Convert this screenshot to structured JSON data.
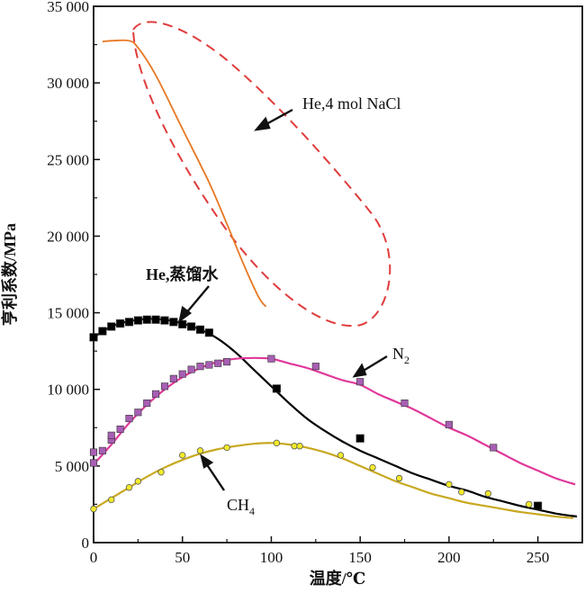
{
  "chart_data": {
    "type": "line",
    "xlabel": "温度/℃",
    "ylabel": "亨利系数/MPa",
    "xlim": [
      0,
      275
    ],
    "ylim": [
      0,
      35000
    ],
    "x_ticks": [
      0,
      50,
      100,
      150,
      200,
      250
    ],
    "x_tick_labels": [
      "0",
      "50",
      "100",
      "150",
      "200",
      "250"
    ],
    "y_ticks": [
      0,
      5000,
      10000,
      15000,
      20000,
      25000,
      30000,
      35000
    ],
    "y_tick_labels": [
      "0",
      "5 000",
      "10 000",
      "15 000",
      "20 000",
      "25 000",
      "30 000",
      "35 000"
    ],
    "grid": false,
    "series": [
      {
        "name": "He,4 mol NaCl",
        "color": "#e87722",
        "marker": "none",
        "curve": [
          [
            5,
            32700
          ],
          [
            10,
            32750
          ],
          [
            20,
            32750
          ],
          [
            25,
            32300
          ],
          [
            35,
            30500
          ],
          [
            50,
            27000
          ],
          [
            65,
            23500
          ],
          [
            75,
            20800
          ],
          [
            85,
            18000
          ],
          [
            93,
            16000
          ],
          [
            97,
            15400
          ]
        ]
      },
      {
        "name": "He,蒸馏水",
        "color": "#000000",
        "marker": "square",
        "marker_fill": "#000000",
        "points": [
          [
            0,
            13400
          ],
          [
            5,
            13800
          ],
          [
            10,
            14100
          ],
          [
            15,
            14300
          ],
          [
            20,
            14400
          ],
          [
            25,
            14500
          ],
          [
            30,
            14550
          ],
          [
            35,
            14550
          ],
          [
            40,
            14500
          ],
          [
            45,
            14400
          ],
          [
            50,
            14250
          ],
          [
            55,
            14100
          ],
          [
            60,
            13900
          ],
          [
            65,
            13700
          ],
          [
            103,
            10050
          ],
          [
            150,
            6800
          ],
          [
            250,
            2400
          ]
        ],
        "curve": [
          [
            0,
            13400
          ],
          [
            10,
            14100
          ],
          [
            20,
            14450
          ],
          [
            30,
            14600
          ],
          [
            40,
            14550
          ],
          [
            50,
            14300
          ],
          [
            60,
            13900
          ],
          [
            70,
            13300
          ],
          [
            80,
            12400
          ],
          [
            90,
            11300
          ],
          [
            100,
            10200
          ],
          [
            110,
            9100
          ],
          [
            120,
            8100
          ],
          [
            130,
            7300
          ],
          [
            140,
            6600
          ],
          [
            150,
            6000
          ],
          [
            160,
            5500
          ],
          [
            170,
            5000
          ],
          [
            180,
            4500
          ],
          [
            190,
            4100
          ],
          [
            200,
            3700
          ],
          [
            210,
            3400
          ],
          [
            220,
            3000
          ],
          [
            230,
            2700
          ],
          [
            240,
            2400
          ],
          [
            250,
            2150
          ],
          [
            260,
            1900
          ],
          [
            272,
            1700
          ]
        ]
      },
      {
        "name": "N2",
        "color": "#e0389a",
        "marker": "square",
        "marker_fill": "#a75fb3",
        "points": [
          [
            0,
            5900
          ],
          [
            0,
            5200
          ],
          [
            5,
            6000
          ],
          [
            10,
            6700
          ],
          [
            10,
            7000
          ],
          [
            15,
            7400
          ],
          [
            20,
            8100
          ],
          [
            25,
            8500
          ],
          [
            30,
            9100
          ],
          [
            35,
            9700
          ],
          [
            40,
            10200
          ],
          [
            45,
            10700
          ],
          [
            50,
            11000
          ],
          [
            55,
            11300
          ],
          [
            60,
            11500
          ],
          [
            65,
            11600
          ],
          [
            70,
            11700
          ],
          [
            75,
            11800
          ],
          [
            100,
            12000
          ],
          [
            125,
            11500
          ],
          [
            150,
            10500
          ],
          [
            175,
            9100
          ],
          [
            200,
            7700
          ],
          [
            225,
            6200
          ]
        ],
        "curve": [
          [
            0,
            5100
          ],
          [
            10,
            6400
          ],
          [
            20,
            7800
          ],
          [
            30,
            9000
          ],
          [
            40,
            10000
          ],
          [
            50,
            10800
          ],
          [
            60,
            11400
          ],
          [
            70,
            11800
          ],
          [
            80,
            12000
          ],
          [
            90,
            12050
          ],
          [
            100,
            12000
          ],
          [
            110,
            11700
          ],
          [
            120,
            11400
          ],
          [
            130,
            11000
          ],
          [
            140,
            10600
          ],
          [
            150,
            10300
          ],
          [
            160,
            9700
          ],
          [
            170,
            9200
          ],
          [
            180,
            8700
          ],
          [
            190,
            8100
          ],
          [
            200,
            7500
          ],
          [
            210,
            7000
          ],
          [
            220,
            6400
          ],
          [
            230,
            5800
          ],
          [
            240,
            5200
          ],
          [
            250,
            4700
          ],
          [
            260,
            4200
          ],
          [
            271,
            3800
          ]
        ]
      },
      {
        "name": "CH4",
        "color": "#c8a820",
        "marker": "circle",
        "marker_fill": "#f2ea2a",
        "points": [
          [
            0,
            2200
          ],
          [
            10,
            2800
          ],
          [
            20,
            3600
          ],
          [
            25,
            4000
          ],
          [
            38,
            4600
          ],
          [
            50,
            5700
          ],
          [
            60,
            6000
          ],
          [
            75,
            6200
          ],
          [
            103,
            6500
          ],
          [
            113,
            6300
          ],
          [
            116,
            6300
          ],
          [
            139,
            5700
          ],
          [
            157,
            4900
          ],
          [
            172,
            4200
          ],
          [
            200,
            3800
          ],
          [
            207,
            3300
          ],
          [
            222,
            3200
          ],
          [
            245,
            2500
          ]
        ],
        "curve": [
          [
            0,
            2200
          ],
          [
            10,
            2900
          ],
          [
            20,
            3600
          ],
          [
            30,
            4300
          ],
          [
            40,
            4900
          ],
          [
            50,
            5400
          ],
          [
            60,
            5800
          ],
          [
            70,
            6100
          ],
          [
            80,
            6300
          ],
          [
            90,
            6450
          ],
          [
            100,
            6500
          ],
          [
            110,
            6400
          ],
          [
            120,
            6200
          ],
          [
            130,
            5900
          ],
          [
            140,
            5500
          ],
          [
            150,
            5000
          ],
          [
            160,
            4500
          ],
          [
            170,
            4000
          ],
          [
            180,
            3600
          ],
          [
            190,
            3200
          ],
          [
            200,
            2900
          ],
          [
            210,
            2600
          ],
          [
            220,
            2400
          ],
          [
            230,
            2200
          ],
          [
            240,
            2000
          ],
          [
            250,
            1850
          ],
          [
            260,
            1700
          ],
          [
            270,
            1600
          ]
        ]
      }
    ],
    "annotations": [
      {
        "id": "nacl",
        "text": "He,4 mol NaCl"
      },
      {
        "id": "water",
        "text": "He,蒸馏水"
      },
      {
        "id": "n2",
        "text": "N",
        "sub": "2"
      },
      {
        "id": "ch4",
        "text": "CH",
        "sub": "4"
      }
    ]
  }
}
